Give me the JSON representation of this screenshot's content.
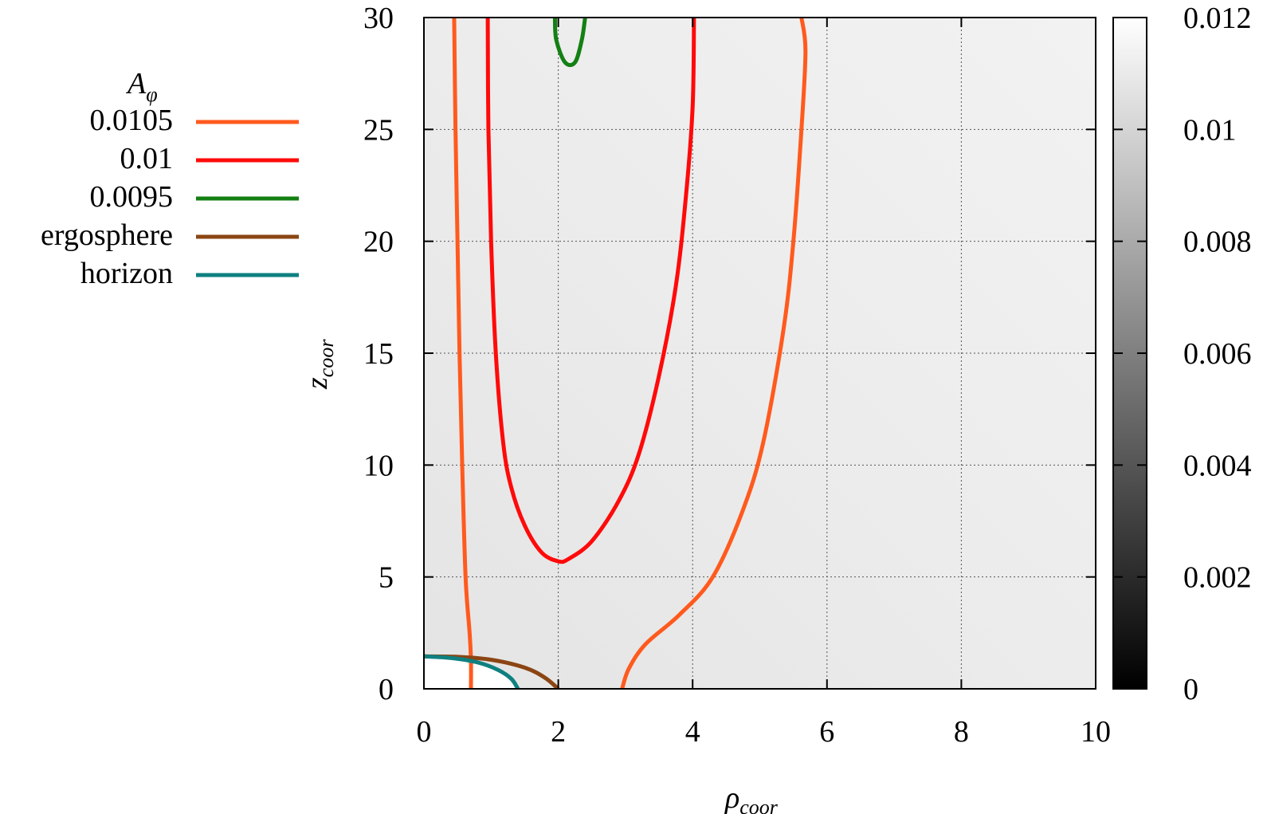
{
  "chart_data": {
    "type": "contour",
    "xlabel": "ρ",
    "xlabel_sub": "coor",
    "ylabel": "z",
    "ylabel_sub": "coor",
    "xlim": [
      0,
      10
    ],
    "ylim": [
      0,
      30
    ],
    "xticks": [
      "0",
      "2",
      "4",
      "6",
      "8",
      "10"
    ],
    "yticks": [
      "0",
      "5",
      "10",
      "15",
      "20",
      "25",
      "30"
    ],
    "grid": true,
    "legend": {
      "title": "A",
      "title_sub": "φ",
      "placement": "left",
      "entries": [
        "0.0105",
        "0.01",
        "0.0095",
        "ergosphere",
        "horizon"
      ]
    },
    "colorbar": {
      "range": [
        0,
        0.012
      ],
      "ticks": [
        "0",
        "0.002",
        "0.004",
        "0.006",
        "0.008",
        "0.01",
        "0.012"
      ],
      "colormap": "grayscale",
      "colors": [
        "#000000",
        "#ffffff"
      ]
    },
    "series": [
      {
        "name": "0.0105",
        "color": "#ff5a1e",
        "segments": [
          [
            [
              0.45,
              30
            ],
            [
              0.47,
              25
            ],
            [
              0.5,
              20
            ],
            [
              0.53,
              15
            ],
            [
              0.57,
              10
            ],
            [
              0.62,
              5
            ],
            [
              0.68,
              2.5
            ],
            [
              0.7,
              1.3
            ],
            [
              0.7,
              0
            ]
          ],
          [
            [
              2.95,
              0
            ],
            [
              3.05,
              0.9
            ],
            [
              3.3,
              2.0
            ],
            [
              3.8,
              3.3
            ],
            [
              4.3,
              5
            ],
            [
              4.75,
              8
            ],
            [
              5.05,
              11
            ],
            [
              5.35,
              16
            ],
            [
              5.5,
              20
            ],
            [
              5.62,
              25
            ],
            [
              5.68,
              28.5
            ],
            [
              5.62,
              30
            ]
          ]
        ]
      },
      {
        "name": "0.01",
        "color": "#ff0a0a",
        "segments": [
          [
            [
              0.95,
              30
            ],
            [
              0.96,
              25
            ],
            [
              1.0,
              20
            ],
            [
              1.07,
              15
            ],
            [
              1.18,
              11
            ],
            [
              1.3,
              9
            ],
            [
              1.5,
              7.3
            ],
            [
              1.75,
              6.1
            ],
            [
              2.0,
              5.7
            ],
            [
              2.15,
              5.8
            ],
            [
              2.5,
              6.6
            ],
            [
              2.9,
              8.4
            ],
            [
              3.2,
              10.5
            ],
            [
              3.5,
              14
            ],
            [
              3.75,
              18
            ],
            [
              3.9,
              22
            ],
            [
              4.0,
              26
            ],
            [
              4.02,
              30
            ]
          ]
        ]
      },
      {
        "name": "0.0095",
        "color": "#138013",
        "segments": [
          [
            [
              1.95,
              30
            ],
            [
              1.97,
              29
            ],
            [
              2.1,
              28
            ],
            [
              2.25,
              28
            ],
            [
              2.35,
              29
            ],
            [
              2.4,
              30
            ]
          ]
        ]
      },
      {
        "name": "ergosphere",
        "color": "#8b4513",
        "segments": [
          [
            [
              0,
              1.45
            ],
            [
              0.5,
              1.43
            ],
            [
              1.0,
              1.3
            ],
            [
              1.5,
              0.95
            ],
            [
              1.8,
              0.5
            ],
            [
              2.0,
              0
            ]
          ]
        ]
      },
      {
        "name": "horizon",
        "color": "#0f8080",
        "segments": [
          [
            [
              0,
              1.45
            ],
            [
              0.4,
              1.38
            ],
            [
              0.8,
              1.18
            ],
            [
              1.1,
              0.85
            ],
            [
              1.3,
              0.45
            ],
            [
              1.4,
              0
            ]
          ]
        ]
      }
    ]
  }
}
